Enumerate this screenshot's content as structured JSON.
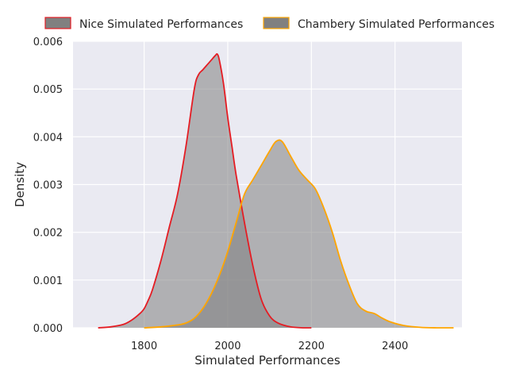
{
  "chart_data": {
    "type": "area",
    "xlabel": "Simulated Performances",
    "ylabel": "Density",
    "xlim": [
      1630,
      2560
    ],
    "ylim": [
      0,
      0.006
    ],
    "x_ticks": [
      1800,
      2000,
      2200,
      2400
    ],
    "x_tick_labels": [
      "1800",
      "2000",
      "2200",
      "2400"
    ],
    "y_ticks": [
      0,
      0.001,
      0.002,
      0.003,
      0.004,
      0.005,
      0.006
    ],
    "y_tick_labels": [
      "0.000",
      "0.001",
      "0.002",
      "0.003",
      "0.004",
      "0.005",
      "0.006"
    ],
    "grid": true,
    "legend_placement": "top, outside plot",
    "colors": {
      "background": "#eaeaf2",
      "grid": "#ffffff",
      "fill": "#808080",
      "nice_edge": "#e51c23",
      "chambery_edge": "#ffa500"
    },
    "series": [
      {
        "name": "Nice Simulated Performances",
        "edge_color": "#e51c23",
        "x": [
          1690,
          1720,
          1750,
          1770,
          1790,
          1800,
          1810,
          1820,
          1840,
          1860,
          1880,
          1900,
          1920,
          1930,
          1940,
          1950,
          1960,
          1970,
          1975,
          1980,
          1990,
          2000,
          2010,
          2020,
          2040,
          2060,
          2080,
          2100,
          2120,
          2150,
          2180,
          2200
        ],
        "y": [
          0,
          2e-05,
          7e-05,
          0.00016,
          0.0003,
          0.0004,
          0.00058,
          0.0008,
          0.0014,
          0.0021,
          0.0028,
          0.0038,
          0.005,
          0.0053,
          0.0054,
          0.0055,
          0.0056,
          0.0057,
          0.00573,
          0.0056,
          0.0051,
          0.0044,
          0.0038,
          0.0032,
          0.0022,
          0.0013,
          0.0006,
          0.00025,
          0.0001,
          2e-05,
          0,
          0
        ]
      },
      {
        "name": "Chambery Simulated Performances",
        "edge_color": "#ffa500",
        "x": [
          1800,
          1840,
          1880,
          1900,
          1920,
          1940,
          1960,
          1980,
          2000,
          2020,
          2040,
          2060,
          2080,
          2100,
          2115,
          2130,
          2150,
          2170,
          2190,
          2210,
          2230,
          2250,
          2270,
          2290,
          2310,
          2330,
          2350,
          2370,
          2390,
          2420,
          2460,
          2500,
          2540
        ],
        "y": [
          0,
          2e-05,
          6e-05,
          0.0001,
          0.0002,
          0.0004,
          0.0007,
          0.0011,
          0.0016,
          0.0022,
          0.0028,
          0.0031,
          0.0034,
          0.0037,
          0.0039,
          0.0039,
          0.0036,
          0.0033,
          0.0031,
          0.0029,
          0.0025,
          0.002,
          0.0014,
          0.0009,
          0.0005,
          0.00035,
          0.0003,
          0.0002,
          0.00012,
          5e-05,
          1e-05,
          0,
          0
        ]
      }
    ]
  }
}
